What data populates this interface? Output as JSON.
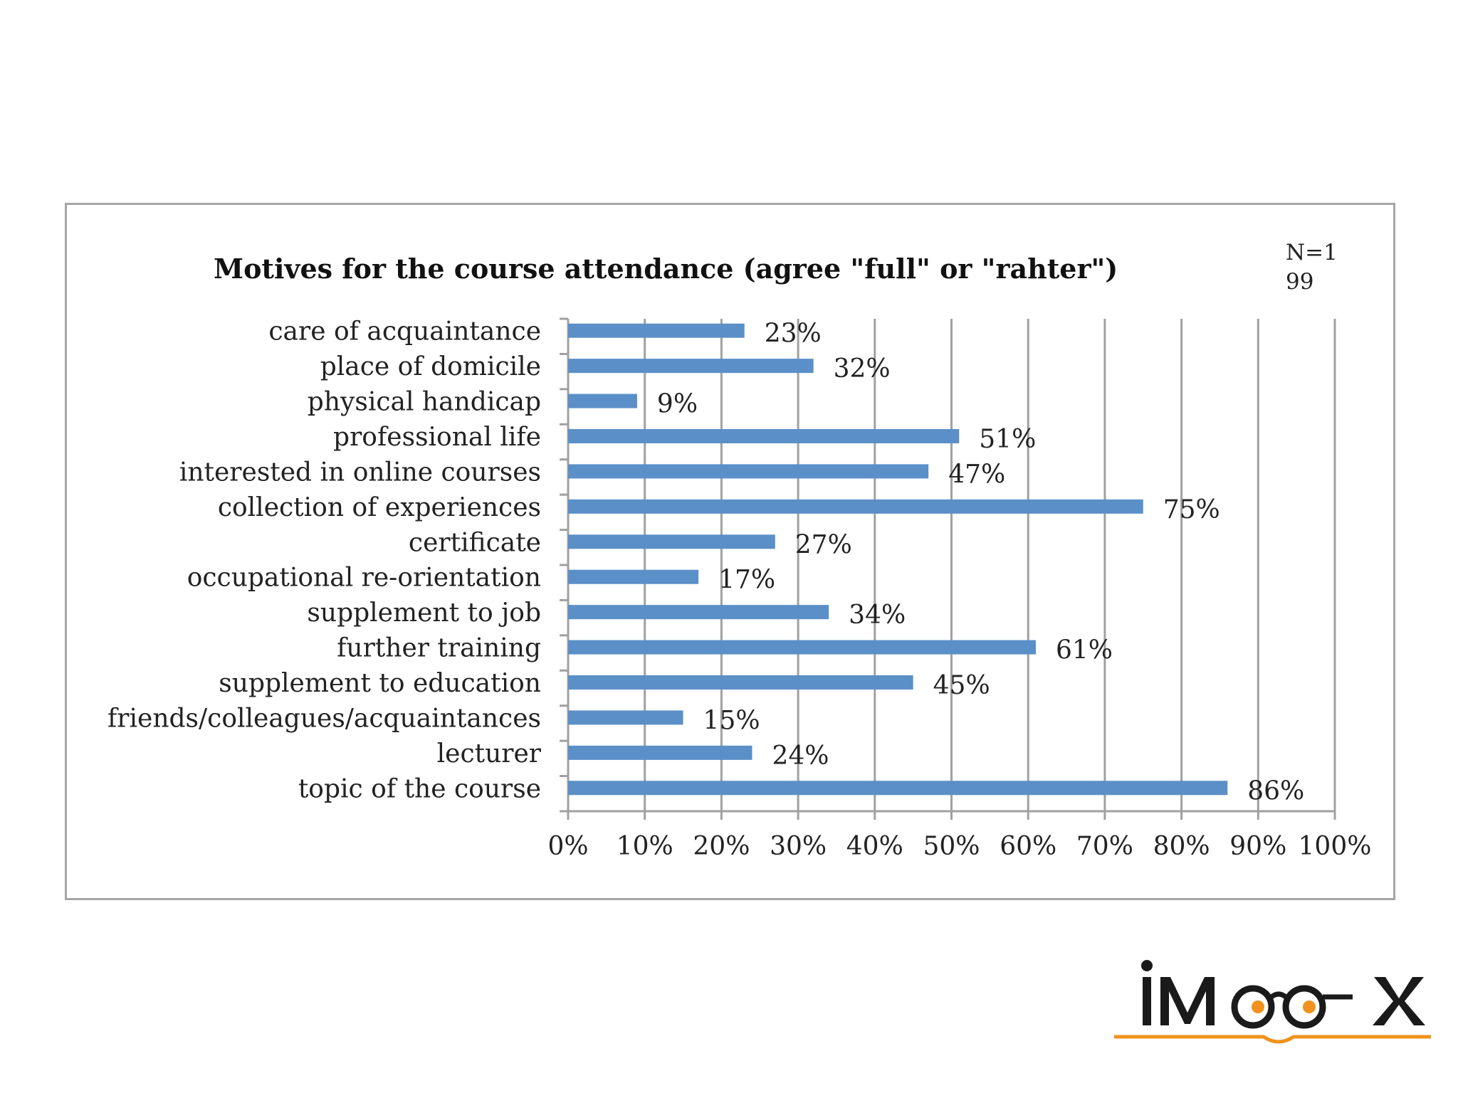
{
  "chart_data": {
    "type": "bar",
    "orientation": "horizontal",
    "title": "Motives for the course attendance (agree \"full\" or \"rahter\")",
    "note": "N=199",
    "categories": [
      "care of acquaintance",
      "place of domicile",
      "physical handicap",
      "professional life",
      "interested in online courses",
      "collection of experiences",
      "certificate",
      "occupational re-orientation",
      "supplement to job",
      "further training",
      "supplement to education",
      "friends/colleagues/acquaintances",
      "lecturer",
      "topic of  the course"
    ],
    "values": [
      23,
      32,
      9,
      51,
      47,
      75,
      27,
      17,
      34,
      61,
      45,
      15,
      24,
      86
    ],
    "data_labels": [
      "23%",
      "32%",
      "9%",
      "51%",
      "47%",
      "75%",
      "27%",
      "17%",
      "34%",
      "61%",
      "45%",
      "15%",
      "24%",
      "86%"
    ],
    "xlim": [
      0,
      100
    ],
    "x_ticks": [
      "0%",
      "10%",
      "20%",
      "30%",
      "40%",
      "50%",
      "60%",
      "70%",
      "80%",
      "90%",
      "100%"
    ],
    "grid": "vertical",
    "bar_color": "#5b8fc7"
  },
  "brand": {
    "logo_text": "iMooX",
    "accent_color": "#f0921e"
  }
}
